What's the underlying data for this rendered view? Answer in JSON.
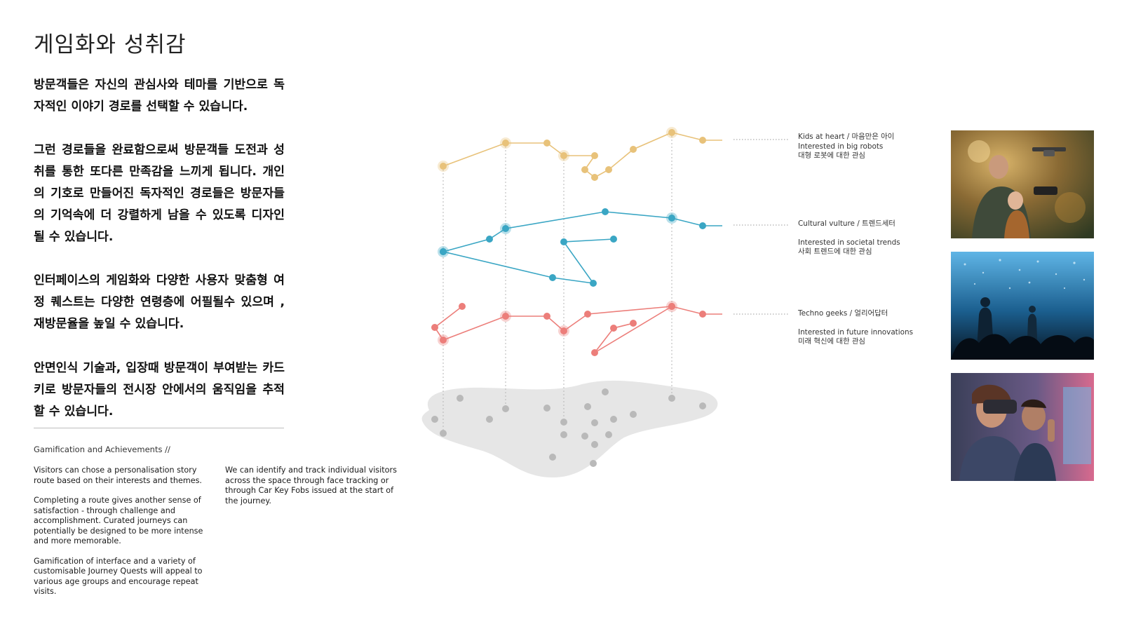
{
  "title": "게임화와 성취감",
  "korean_paragraphs": [
    "방문객들은 자신의 관심사와 테마를 기반으로 독자적인 이야기 경로를 선택할 수 있습니다.",
    "그런 경로들을 완료함으로써 방문객들 도전과 성취를 통한 또다른 만족감을 느끼게 됩니다. 개인의 기호로 만들어진 독자적인 경로들은 방문자들의 기억속에 더 강렬하게 남을 수 있도록 디자인될 수 있습니다.",
    "인터페이스의 게임화와 다양한 사용자 맞춤형 여정 퀘스트는 다양한 연령층에 어필될수 있으며 , 재방문율을 높일 수 있습니다.",
    "안면인식 기술과, 입장때 방문객이 부여받는 카드키로 방문자들의 전시장 안에서의 움직임을 추적할 수 있습니다."
  ],
  "english_heading": "Gamification and Achievements //",
  "english_col1": [
    "Visitors can chose a personalisation story route based on their interests and themes.",
    "Completing a route gives another sense of satisfaction - through challenge and accomplishment. Curated journeys can potentially be designed to be more intense and more memorable.",
    "Gamification of interface and a variety of customisable Journey Quests will appeal to various age groups and encourage repeat visits."
  ],
  "english_col2": [
    "We can identify and track individual visitors across the space through face tracking or through Car Key Fobs issued at the start of the journey."
  ],
  "segments": [
    {
      "id": "kids",
      "color": "#e8c27a",
      "line1": "Kids at heart / 마음만은 아이",
      "line2": "Interested in big robots",
      "line3": "대형 로봇에 대한 관심"
    },
    {
      "id": "cultural",
      "color": "#3aa6c4",
      "line1": "Cultural vulture / 트렌드세터",
      "line2": "Interested in societal trends",
      "line3": "사회 트렌드에 대한 관심"
    },
    {
      "id": "techno",
      "color": "#ec7e7a",
      "line1": "Techno geeks / 얼리어답터",
      "line2": "Interested in future innovations",
      "line3": "미래 혁신에 대한 관심"
    }
  ],
  "photos": [
    {
      "icon": "father-child-drone-photo"
    },
    {
      "icon": "crowd-at-light-show-photo"
    },
    {
      "icon": "vr-headset-visitors-photo"
    }
  ]
}
